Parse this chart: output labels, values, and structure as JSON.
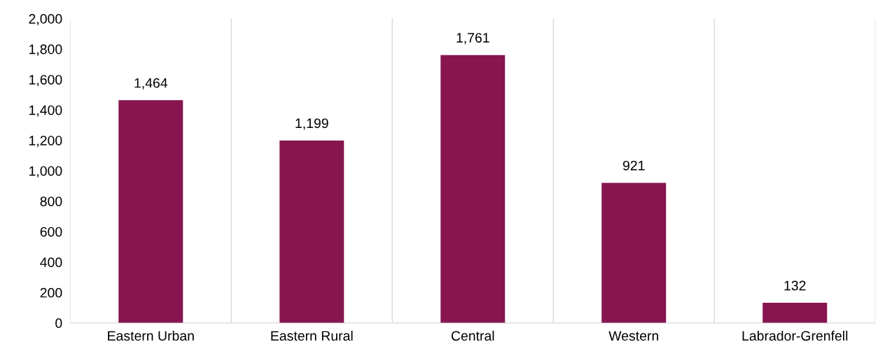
{
  "chart_data": {
    "type": "bar",
    "categories": [
      "Eastern Urban",
      "Eastern Rural",
      "Central",
      "Western",
      "Labrador-Grenfell"
    ],
    "values": [
      1464,
      1199,
      1761,
      921,
      132
    ],
    "value_labels": [
      "1,464",
      "1,199",
      "1,761",
      "921",
      "132"
    ],
    "color": "#861550",
    "ylim": [
      0,
      2000
    ],
    "yticks": [
      0,
      200,
      400,
      600,
      800,
      {
        "value": 1000,
        "label": "1,000"
      },
      {
        "value": 1200,
        "label": "1,200"
      },
      {
        "value": 1400,
        "label": "1,400"
      },
      {
        "value": 1600,
        "label": "1,600"
      },
      {
        "value": 1800,
        "label": "1,800"
      },
      {
        "value": 2000,
        "label": "2,000"
      }
    ],
    "grid": "x"
  }
}
